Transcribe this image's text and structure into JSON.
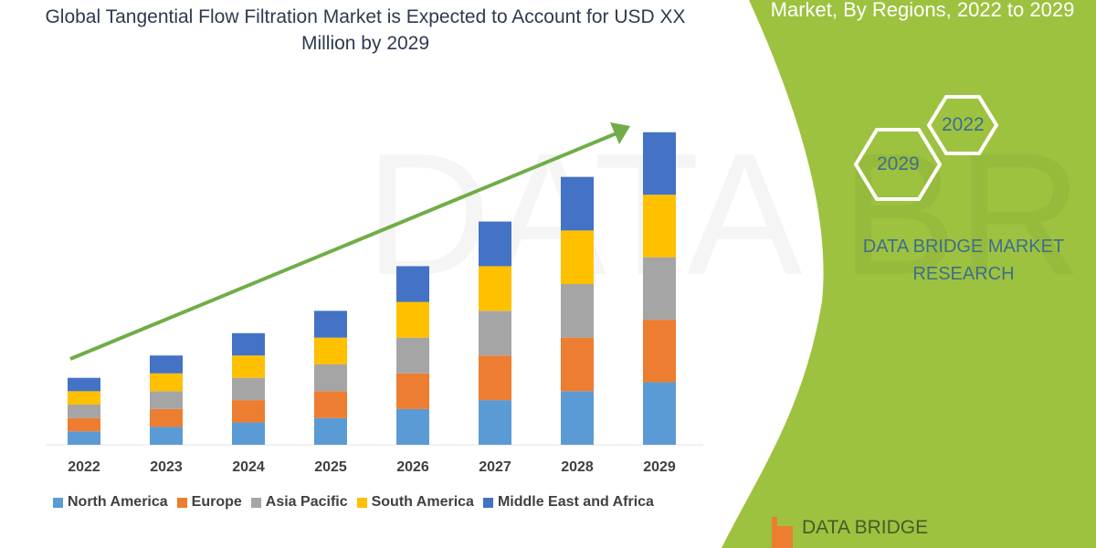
{
  "title": "Global Tangential Flow Filtration Market is Expected to Account for USD XX Million by 2029",
  "side_panel": {
    "title": "Market, By Regions, 2022 to 2029",
    "hex_labels": [
      "2022",
      "2029"
    ],
    "brand": "DATA BRIDGE MARKET RESEARCH",
    "logo_text": "DATA BRIDGE",
    "color": "#9dc23f"
  },
  "chart_data": {
    "type": "bar",
    "stacked": true,
    "title": "",
    "xlabel": "",
    "ylabel": "",
    "categories": [
      "2022",
      "2023",
      "2024",
      "2025",
      "2026",
      "2027",
      "2028",
      "2029"
    ],
    "series": [
      {
        "name": "North America",
        "color": "#5b9bd5",
        "values": [
          15,
          20,
          25,
          30,
          40,
          50,
          60,
          70
        ]
      },
      {
        "name": "Europe",
        "color": "#ed7d31",
        "values": [
          15,
          20,
          25,
          30,
          40,
          50,
          60,
          70
        ]
      },
      {
        "name": "Asia Pacific",
        "color": "#a5a5a5",
        "values": [
          15,
          20,
          25,
          30,
          40,
          50,
          60,
          70
        ]
      },
      {
        "name": "South America",
        "color": "#ffc000",
        "values": [
          15,
          20,
          25,
          30,
          40,
          50,
          60,
          70
        ]
      },
      {
        "name": "Middle East and Africa",
        "color": "#4472c4",
        "values": [
          15,
          20,
          25,
          30,
          40,
          50,
          60,
          70
        ]
      }
    ],
    "ylim": [
      0,
      360
    ],
    "grid": false,
    "legend": "bottom",
    "trend_arrow_color": "#70ad47"
  }
}
